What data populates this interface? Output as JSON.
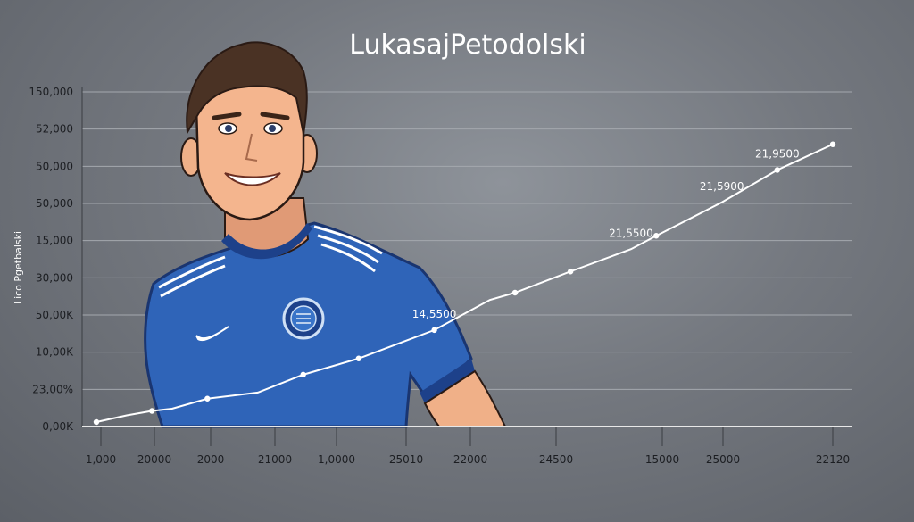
{
  "chart_data": {
    "type": "line",
    "title": "LukasajPetodolski",
    "ylabel": "Lico Pgetbalski",
    "xlabel": "",
    "grid": true,
    "legend": "none",
    "y_tick_labels": [
      "150,000",
      "52,000",
      "50,000",
      "50,000",
      "15,000",
      "30,000",
      "50,00K",
      "10,00K",
      "23,00%",
      "0,00K"
    ],
    "x_tick_labels": [
      "1,000",
      "20000",
      "2000",
      "21000",
      "1,0000",
      "25010",
      "22000",
      "24500",
      "15000",
      "25000",
      "22120"
    ],
    "series": [
      {
        "x_index": [
          0,
          0.6,
          1.1,
          1.5,
          2.2,
          3.2,
          4.1,
          5.2,
          6.7,
          7.8,
          8.3,
          9.4,
          10.6,
          11.1,
          12.4,
          13.5,
          14.6
        ],
        "values": [
          800,
          2000,
          2800,
          3200,
          5000,
          6100,
          9300,
          12200,
          17300,
          22700,
          24000,
          27800,
          31800,
          34200,
          40200,
          46000,
          50600
        ],
        "point_labels": {
          "6.7": "14,5500",
          "10.6": "21,5500",
          "12.4": "21,5900",
          "13.5": "21,9500"
        }
      }
    ]
  },
  "colors": {
    "line": "#ffffff",
    "grid": "#a4a8ae",
    "jersey": "#2f64b8",
    "skin": "#f0b088",
    "hair": "#4a3224"
  },
  "illustration": {
    "subject": "cartoon footballer in blue jersey",
    "icons": [
      "swoosh-logo-icon",
      "club-crest-icon"
    ]
  }
}
